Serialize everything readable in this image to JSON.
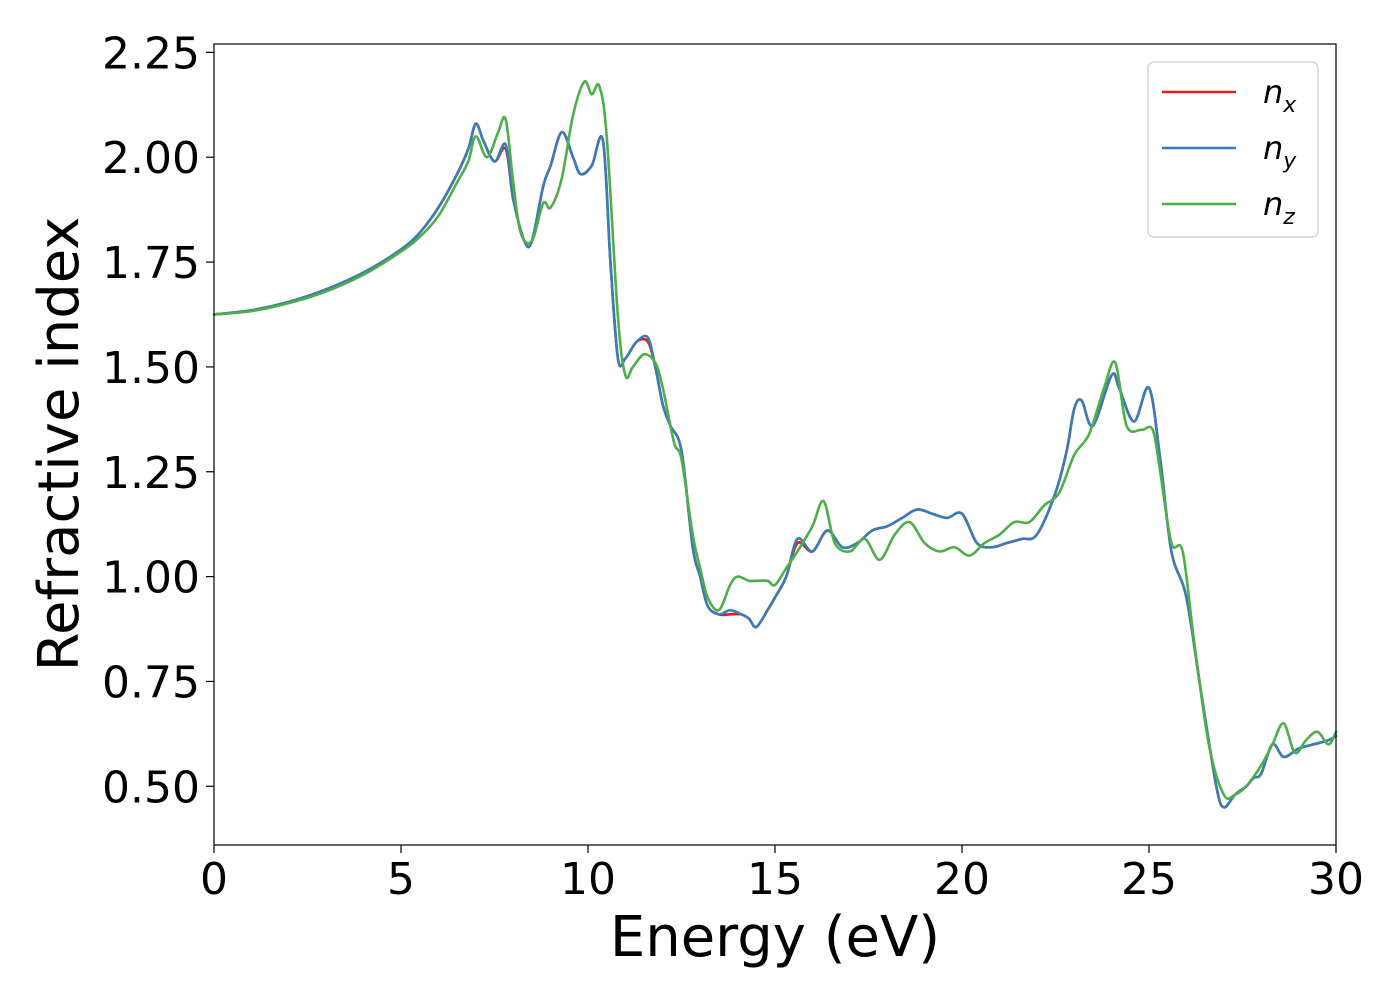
{
  "chart_data": {
    "type": "line",
    "title": "",
    "xlabel": "Energy (eV)",
    "ylabel": "Refractive index",
    "xlim": [
      0,
      30
    ],
    "ylim": [
      0.36,
      2.27
    ],
    "xticks": [
      0,
      5,
      10,
      15,
      20,
      25,
      30
    ],
    "xtick_labels": [
      "0",
      "5",
      "10",
      "15",
      "20",
      "25",
      "30"
    ],
    "yticks": [
      0.5,
      0.75,
      1.0,
      1.25,
      1.5,
      1.75,
      2.0,
      2.25
    ],
    "ytick_labels": [
      "0.50",
      "0.75",
      "1.00",
      "1.25",
      "1.50",
      "1.75",
      "2.00",
      "2.25"
    ],
    "grid": false,
    "legend_position": "top-right",
    "series": [
      {
        "name": "n_x",
        "legend_base": "n",
        "legend_sub": "x",
        "color": "#e41a1c",
        "x": [
          0,
          1,
          2,
          3,
          4,
          5,
          5.5,
          6,
          6.5,
          6.8,
          7.0,
          7.2,
          7.5,
          7.8,
          8.0,
          8.3,
          8.5,
          8.8,
          9.0,
          9.3,
          9.6,
          9.8,
          10.1,
          10.4,
          10.6,
          10.8,
          11.0,
          11.3,
          11.6,
          11.8,
          12.0,
          12.2,
          12.5,
          12.8,
          13.0,
          13.2,
          13.5,
          13.8,
          14.1,
          14.3,
          14.5,
          14.8,
          15.0,
          15.3,
          15.6,
          16.0,
          16.4,
          16.8,
          17.2,
          17.6,
          18.0,
          18.4,
          18.8,
          19.2,
          19.6,
          20.0,
          20.4,
          20.8,
          21.2,
          21.6,
          22.0,
          22.5,
          22.8,
          23.0,
          23.2,
          23.5,
          24.0,
          24.2,
          24.6,
          25.0,
          25.3,
          25.6,
          26.0,
          26.4,
          26.8,
          27.0,
          27.3,
          27.6,
          27.8,
          28.0,
          28.3,
          28.6,
          29.0,
          29.4,
          29.8,
          30.0
        ],
        "y": [
          1.625,
          1.635,
          1.655,
          1.685,
          1.725,
          1.78,
          1.82,
          1.88,
          1.96,
          2.02,
          2.08,
          2.04,
          1.99,
          2.02,
          1.9,
          1.8,
          1.8,
          1.93,
          1.98,
          2.06,
          2.0,
          1.96,
          1.98,
          2.04,
          1.75,
          1.52,
          1.52,
          1.56,
          1.56,
          1.5,
          1.41,
          1.36,
          1.3,
          1.07,
          1.0,
          0.93,
          0.91,
          0.91,
          0.91,
          0.9,
          0.88,
          0.92,
          0.95,
          1.0,
          1.08,
          1.06,
          1.11,
          1.07,
          1.08,
          1.11,
          1.12,
          1.14,
          1.16,
          1.15,
          1.14,
          1.15,
          1.08,
          1.07,
          1.08,
          1.09,
          1.1,
          1.2,
          1.3,
          1.4,
          1.42,
          1.36,
          1.48,
          1.45,
          1.37,
          1.45,
          1.28,
          1.06,
          0.95,
          0.72,
          0.5,
          0.45,
          0.48,
          0.5,
          0.52,
          0.53,
          0.6,
          0.57,
          0.59,
          0.6,
          0.61,
          0.62
        ]
      },
      {
        "name": "n_y",
        "legend_base": "n",
        "legend_sub": "y",
        "color": "#377eb8",
        "x": [
          0,
          1,
          2,
          3,
          4,
          5,
          5.5,
          6,
          6.5,
          6.8,
          7.0,
          7.2,
          7.5,
          7.8,
          8.0,
          8.3,
          8.5,
          8.8,
          9.0,
          9.3,
          9.6,
          9.8,
          10.1,
          10.4,
          10.6,
          10.8,
          11.0,
          11.3,
          11.6,
          11.8,
          12.0,
          12.2,
          12.5,
          12.8,
          13.0,
          13.2,
          13.5,
          13.8,
          14.1,
          14.3,
          14.5,
          14.8,
          15.0,
          15.3,
          15.6,
          16.0,
          16.4,
          16.8,
          17.2,
          17.6,
          18.0,
          18.4,
          18.8,
          19.2,
          19.6,
          20.0,
          20.4,
          20.8,
          21.2,
          21.6,
          22.0,
          22.5,
          22.8,
          23.0,
          23.2,
          23.5,
          24.0,
          24.2,
          24.6,
          25.0,
          25.3,
          25.6,
          26.0,
          26.4,
          26.8,
          27.0,
          27.3,
          27.6,
          27.8,
          28.0,
          28.3,
          28.6,
          29.0,
          29.4,
          29.8,
          30.0
        ],
        "y": [
          1.625,
          1.635,
          1.655,
          1.685,
          1.725,
          1.78,
          1.82,
          1.88,
          1.96,
          2.02,
          2.08,
          2.04,
          1.99,
          2.03,
          1.9,
          1.8,
          1.8,
          1.93,
          1.98,
          2.06,
          2.0,
          1.96,
          1.98,
          2.04,
          1.75,
          1.52,
          1.52,
          1.56,
          1.57,
          1.5,
          1.41,
          1.36,
          1.3,
          1.07,
          1.0,
          0.93,
          0.91,
          0.92,
          0.91,
          0.9,
          0.88,
          0.92,
          0.95,
          1.0,
          1.09,
          1.06,
          1.11,
          1.07,
          1.08,
          1.11,
          1.12,
          1.14,
          1.16,
          1.15,
          1.14,
          1.15,
          1.08,
          1.07,
          1.08,
          1.09,
          1.1,
          1.2,
          1.3,
          1.4,
          1.42,
          1.36,
          1.48,
          1.45,
          1.37,
          1.45,
          1.28,
          1.06,
          0.95,
          0.72,
          0.5,
          0.45,
          0.48,
          0.5,
          0.52,
          0.53,
          0.6,
          0.57,
          0.59,
          0.6,
          0.61,
          0.62
        ]
      },
      {
        "name": "n_z",
        "legend_base": "n",
        "legend_sub": "z",
        "color": "#4daf4a",
        "x": [
          0,
          1,
          2,
          3,
          4,
          5,
          5.5,
          6,
          6.5,
          6.8,
          7.0,
          7.3,
          7.6,
          7.8,
          8.0,
          8.2,
          8.5,
          8.8,
          9.0,
          9.3,
          9.6,
          9.9,
          10.1,
          10.3,
          10.5,
          10.8,
          11.0,
          11.2,
          11.5,
          11.8,
          12.0,
          12.3,
          12.5,
          12.8,
          13.0,
          13.2,
          13.5,
          13.8,
          14.0,
          14.3,
          14.5,
          14.8,
          15.0,
          15.3,
          15.6,
          16.0,
          16.3,
          16.6,
          17.0,
          17.4,
          17.8,
          18.2,
          18.6,
          19.0,
          19.4,
          19.8,
          20.2,
          20.6,
          21.0,
          21.4,
          21.8,
          22.2,
          22.6,
          23.0,
          23.4,
          23.8,
          24.1,
          24.4,
          24.8,
          25.1,
          25.3,
          25.6,
          25.9,
          26.2,
          26.6,
          27.0,
          27.3,
          27.6,
          28.0,
          28.3,
          28.6,
          28.9,
          29.2,
          29.5,
          29.8,
          30.0
        ],
        "y": [
          1.625,
          1.633,
          1.652,
          1.68,
          1.72,
          1.775,
          1.81,
          1.86,
          1.94,
          1.99,
          2.05,
          2.0,
          2.06,
          2.09,
          1.94,
          1.82,
          1.8,
          1.89,
          1.88,
          1.95,
          2.1,
          2.18,
          2.15,
          2.17,
          2.05,
          1.62,
          1.48,
          1.5,
          1.53,
          1.51,
          1.45,
          1.32,
          1.28,
          1.1,
          1.02,
          0.95,
          0.92,
          0.98,
          1.0,
          0.99,
          0.99,
          0.99,
          0.98,
          1.02,
          1.06,
          1.12,
          1.18,
          1.08,
          1.06,
          1.09,
          1.04,
          1.1,
          1.13,
          1.08,
          1.06,
          1.07,
          1.05,
          1.08,
          1.1,
          1.13,
          1.13,
          1.17,
          1.2,
          1.29,
          1.34,
          1.45,
          1.51,
          1.36,
          1.35,
          1.35,
          1.25,
          1.08,
          1.06,
          0.85,
          0.6,
          0.48,
          0.48,
          0.5,
          0.55,
          0.6,
          0.65,
          0.58,
          0.61,
          0.63,
          0.6,
          0.63
        ]
      }
    ]
  }
}
